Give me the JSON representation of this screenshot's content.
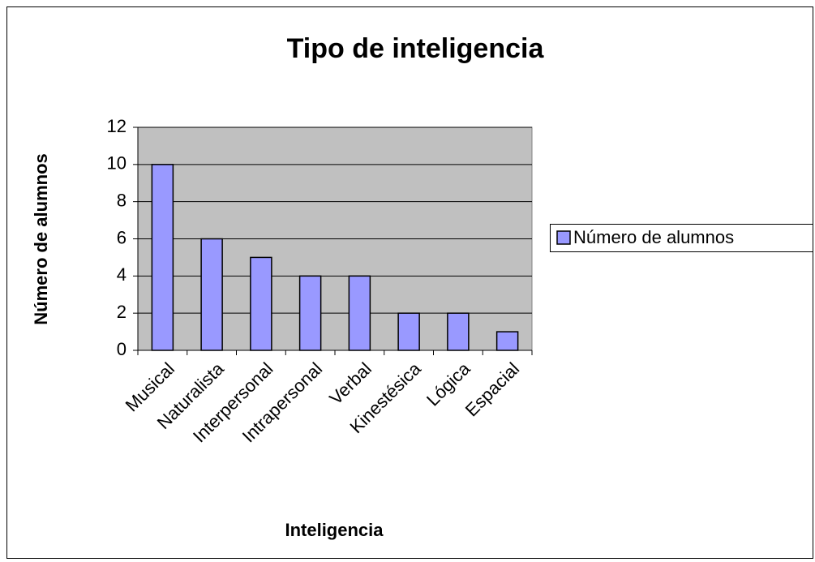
{
  "chart_data": {
    "type": "bar",
    "title": "Tipo de inteligencia",
    "x_label": "Inteligencia",
    "y_label": "Número de alumnos",
    "categories": [
      "Musical",
      "Naturalista",
      "Interpersonal",
      "Intrapersonal",
      "Verbal",
      "Kinestésica",
      "Lógica",
      "Espacial"
    ],
    "series": [
      {
        "name": "Número de alumnos",
        "color": "#9999ff",
        "values": [
          10,
          6,
          5,
          4,
          4,
          2,
          2,
          1
        ]
      }
    ],
    "ylim": [
      0,
      12
    ],
    "yticks": [
      0,
      2,
      4,
      6,
      8,
      10,
      12
    ],
    "grid": true,
    "legend": "right"
  }
}
